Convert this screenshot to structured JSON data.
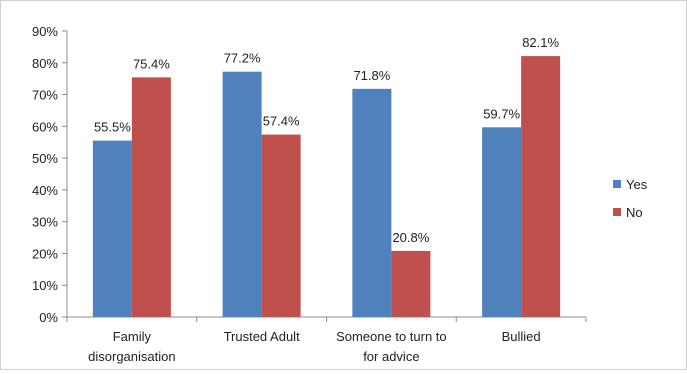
{
  "chart_data": {
    "type": "bar",
    "title": "",
    "xlabel": "",
    "ylabel": "",
    "ylim": [
      0,
      90
    ],
    "ytick_step": 10,
    "y_unit": "%",
    "categories": [
      [
        "Family",
        "disorganisation"
      ],
      [
        "Trusted Adult"
      ],
      [
        "Someone to turn to",
        "for advice"
      ],
      [
        "Bullied"
      ]
    ],
    "series": [
      {
        "name": "Yes",
        "color": "#4f81bd",
        "values": [
          55.5,
          77.2,
          71.8,
          59.7
        ]
      },
      {
        "name": "No",
        "color": "#c0504d",
        "values": [
          75.4,
          57.4,
          20.8,
          82.1
        ]
      }
    ],
    "legend_position": "right",
    "grid": false
  }
}
